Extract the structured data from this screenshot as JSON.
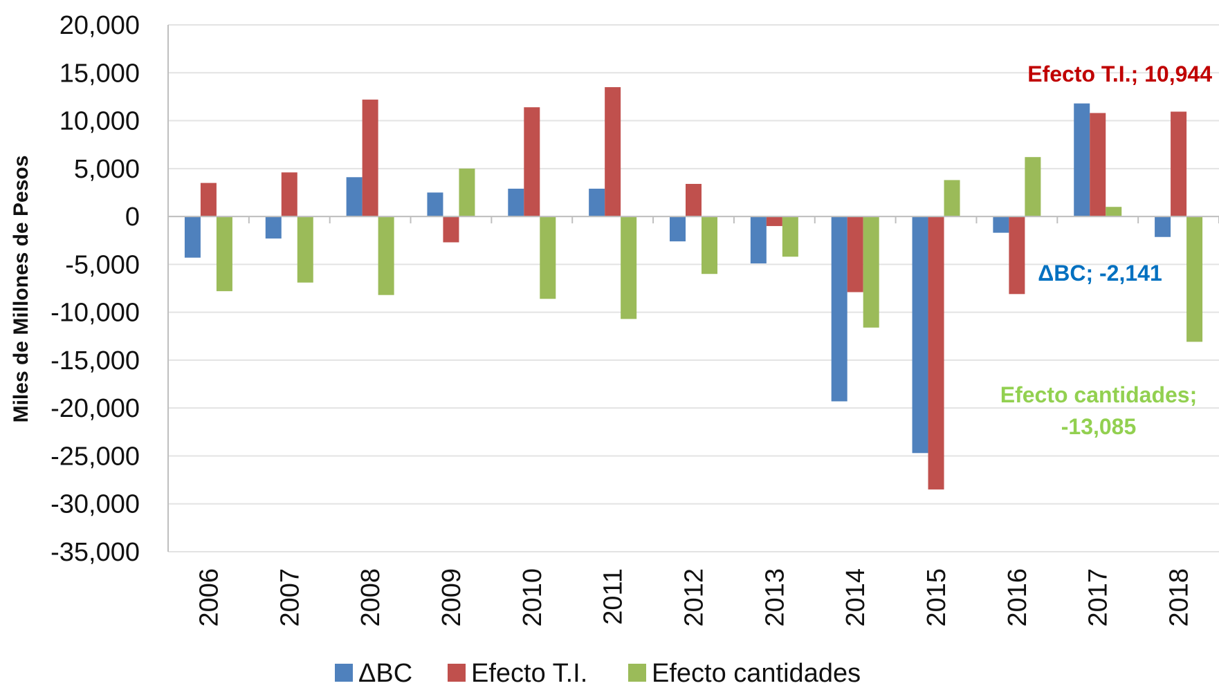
{
  "chart_data": {
    "type": "bar",
    "title": "",
    "xlabel": "",
    "ylabel": "Miles de Millones de Pesos",
    "ylim": [
      -35000,
      20000
    ],
    "yticks": [
      20000,
      15000,
      10000,
      5000,
      0,
      -5000,
      -10000,
      -15000,
      -20000,
      -25000,
      -30000,
      -35000
    ],
    "ytick_labels": [
      "20,000",
      "15,000",
      "10,000",
      "5,000",
      "0",
      "-5,000",
      "-10,000",
      "-15,000",
      "-20,000",
      "-25,000",
      "-30,000",
      "-35,000"
    ],
    "categories": [
      "2006",
      "2007",
      "2008",
      "2009",
      "2010",
      "2011",
      "2012",
      "2013",
      "2014",
      "2015",
      "2016",
      "2017",
      "2018"
    ],
    "grid": true,
    "legend_position": "bottom",
    "series": [
      {
        "name": "ΔBC",
        "color": "#4f81bd",
        "values": [
          -4300,
          -2300,
          4100,
          2500,
          2900,
          2900,
          -2600,
          -4900,
          -19300,
          -24700,
          -1700,
          11800,
          -2141
        ]
      },
      {
        "name": "Efecto T.I.",
        "color": "#c0504d",
        "values": [
          3500,
          4600,
          12200,
          -2700,
          11400,
          13500,
          3400,
          -1000,
          -7900,
          -28500,
          -8100,
          10800,
          10944
        ]
      },
      {
        "name": "Efecto cantidades",
        "color": "#9bbb59",
        "values": [
          -7800,
          -6900,
          -8200,
          5000,
          -8600,
          -10700,
          -6000,
          -4200,
          -11600,
          3800,
          6200,
          1000,
          -13085
        ]
      }
    ],
    "annotations": [
      {
        "text": "Efecto T.I.; 10,944",
        "color": "#c00000"
      },
      {
        "text": "ΔBC; -2,141",
        "color": "#0070c0"
      },
      {
        "lines": [
          "Efecto cantidades;",
          "-13,085"
        ],
        "color": "#92d050"
      }
    ]
  }
}
